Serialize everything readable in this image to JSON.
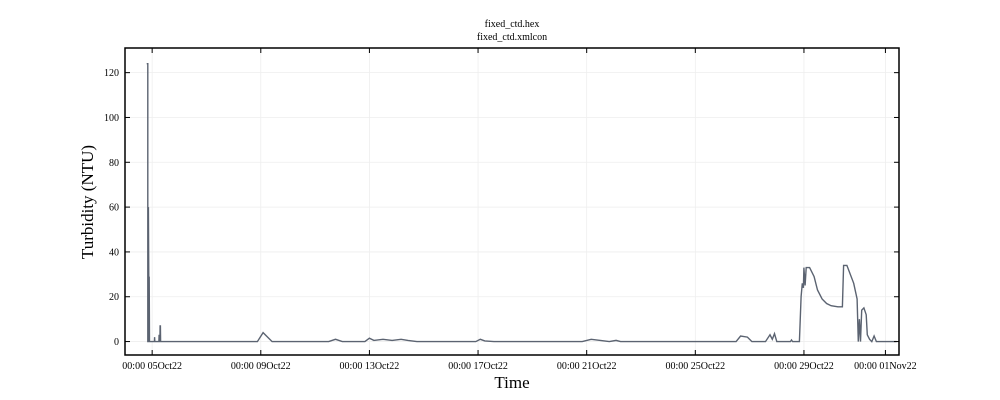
{
  "chart_data": {
    "type": "line",
    "title_lines": [
      "fixed_ctd.hex",
      "fixed_ctd.xmlcon"
    ],
    "xlabel": "Time",
    "ylabel": "Turbidity (NTU)",
    "x_unit": "days",
    "xlim": [
      "2022-10-04T00:00",
      "2022-11-01T12:00"
    ],
    "ylim": [
      -6,
      131
    ],
    "y_ticks": [
      0,
      20,
      40,
      60,
      80,
      100,
      120
    ],
    "x_ticks": [
      {
        "t": "2022-10-05T00:00",
        "label": "00:00 05Oct22"
      },
      {
        "t": "2022-10-09T00:00",
        "label": "00:00 09Oct22"
      },
      {
        "t": "2022-10-13T00:00",
        "label": "00:00 13Oct22"
      },
      {
        "t": "2022-10-17T00:00",
        "label": "00:00 17Oct22"
      },
      {
        "t": "2022-10-21T00:00",
        "label": "00:00 21Oct22"
      },
      {
        "t": "2022-10-25T00:00",
        "label": "00:00 25Oct22"
      },
      {
        "t": "2022-10-29T00:00",
        "label": "00:00 29Oct22"
      },
      {
        "t": "2022-11-01T00:00",
        "label": "00:00 01Nov22"
      }
    ],
    "grid": true,
    "line_color": "#5b6371",
    "series": [
      {
        "points": [
          [
            "2022-10-04T19:12",
            124
          ],
          [
            "2022-10-04T20:10",
            124
          ],
          [
            "2022-10-04T20:10",
            0
          ],
          [
            "2022-10-04T20:40",
            0
          ],
          [
            "2022-10-04T20:40",
            60
          ],
          [
            "2022-10-04T21:10",
            10
          ],
          [
            "2022-10-04T21:25",
            29
          ],
          [
            "2022-10-04T21:40",
            0
          ],
          [
            "2022-10-05T02:00",
            0
          ],
          [
            "2022-10-05T02:10",
            2
          ],
          [
            "2022-10-05T02:20",
            0
          ],
          [
            "2022-10-05T06:00",
            0
          ],
          [
            "2022-10-05T06:10",
            3
          ],
          [
            "2022-10-05T06:20",
            0
          ],
          [
            "2022-10-05T06:50",
            0
          ],
          [
            "2022-10-05T07:00",
            7
          ],
          [
            "2022-10-05T07:15",
            7
          ],
          [
            "2022-10-05T07:25",
            0
          ],
          [
            "2022-10-08T21:00",
            0
          ],
          [
            "2022-10-09T02:00",
            4
          ],
          [
            "2022-10-09T06:00",
            2
          ],
          [
            "2022-10-09T10:00",
            0
          ],
          [
            "2022-10-11T12:00",
            0
          ],
          [
            "2022-10-11T18:00",
            1
          ],
          [
            "2022-10-12T00:00",
            0
          ],
          [
            "2022-10-12T20:00",
            0
          ],
          [
            "2022-10-13T00:00",
            1.5
          ],
          [
            "2022-10-13T04:00",
            0.5
          ],
          [
            "2022-10-13T12:00",
            1
          ],
          [
            "2022-10-13T20:00",
            0.5
          ],
          [
            "2022-10-14T04:00",
            1
          ],
          [
            "2022-10-14T10:00",
            0.5
          ],
          [
            "2022-10-14T18:00",
            0
          ],
          [
            "2022-10-16T22:00",
            0
          ],
          [
            "2022-10-17T02:00",
            1
          ],
          [
            "2022-10-17T06:00",
            0.3
          ],
          [
            "2022-10-17T14:00",
            0
          ],
          [
            "2022-10-20T20:00",
            0
          ],
          [
            "2022-10-21T04:00",
            1
          ],
          [
            "2022-10-21T12:00",
            0.5
          ],
          [
            "2022-10-21T20:00",
            0
          ],
          [
            "2022-10-22T02:00",
            0.5
          ],
          [
            "2022-10-22T06:00",
            0
          ],
          [
            "2022-10-26T12:00",
            0
          ],
          [
            "2022-10-26T16:00",
            2.5
          ],
          [
            "2022-10-26T22:00",
            2
          ],
          [
            "2022-10-27T02:00",
            0
          ],
          [
            "2022-10-27T14:00",
            0
          ],
          [
            "2022-10-27T18:00",
            3
          ],
          [
            "2022-10-27T20:00",
            1
          ],
          [
            "2022-10-27T22:00",
            3.5
          ],
          [
            "2022-10-28T00:00",
            0
          ],
          [
            "2022-10-28T12:00",
            0
          ],
          [
            "2022-10-28T13:00",
            0.7
          ],
          [
            "2022-10-28T14:00",
            0
          ],
          [
            "2022-10-28T20:00",
            0
          ],
          [
            "2022-10-28T21:30",
            20
          ],
          [
            "2022-10-28T22:30",
            26
          ],
          [
            "2022-10-28T23:30",
            24
          ],
          [
            "2022-10-29T00:00",
            33
          ],
          [
            "2022-10-29T01:00",
            25
          ],
          [
            "2022-10-29T02:00",
            33
          ],
          [
            "2022-10-29T05:00",
            33
          ],
          [
            "2022-10-29T09:00",
            29
          ],
          [
            "2022-10-29T12:00",
            23
          ],
          [
            "2022-10-29T16:00",
            19
          ],
          [
            "2022-10-29T20:00",
            17
          ],
          [
            "2022-10-30T00:00",
            16
          ],
          [
            "2022-10-30T06:00",
            15.5
          ],
          [
            "2022-10-30T10:00",
            15.5
          ],
          [
            "2022-10-30T11:00",
            34
          ],
          [
            "2022-10-30T14:00",
            34
          ],
          [
            "2022-10-30T20:00",
            26
          ],
          [
            "2022-10-30T23:00",
            19
          ],
          [
            "2022-10-31T00:00",
            0
          ],
          [
            "2022-10-31T01:00",
            10
          ],
          [
            "2022-10-31T02:00",
            0
          ],
          [
            "2022-10-31T03:00",
            14
          ],
          [
            "2022-10-31T05:00",
            15
          ],
          [
            "2022-10-31T07:00",
            12
          ],
          [
            "2022-10-31T08:00",
            3
          ],
          [
            "2022-10-31T10:00",
            1
          ],
          [
            "2022-10-31T12:00",
            0
          ],
          [
            "2022-10-31T14:00",
            2.5
          ],
          [
            "2022-10-31T16:00",
            0
          ],
          [
            "2022-11-01T10:00",
            0
          ]
        ]
      }
    ]
  }
}
